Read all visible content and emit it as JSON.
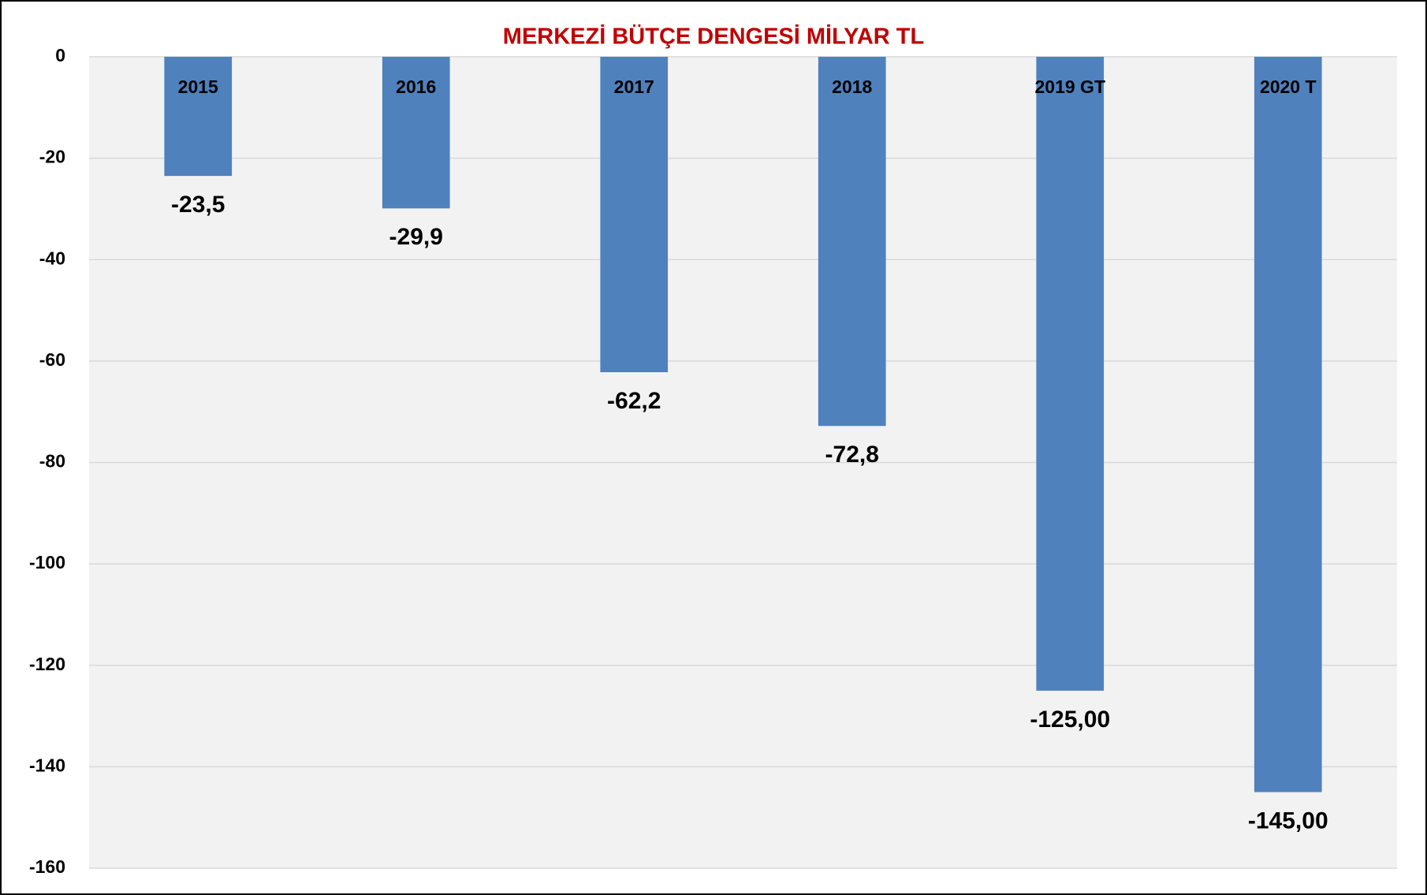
{
  "chart_data": {
    "type": "bar",
    "title": "MERKEZİ BÜTÇE DENGESİ MİLYAR TL",
    "categories": [
      "2015",
      "2016",
      "2017",
      "2018",
      "2019 GT",
      "2020 T"
    ],
    "values": [
      -23.5,
      -29.9,
      -62.2,
      -72.8,
      -125.0,
      -145.0
    ],
    "value_labels": [
      "-23,5",
      "-29,9",
      "-62,2",
      "-72,8",
      "-125,00",
      "-145,00"
    ],
    "color": "#4f81bd",
    "ylim": [
      -160,
      0
    ],
    "yticks": [
      0,
      -20,
      -40,
      -60,
      -80,
      -100,
      -120,
      -140,
      -160
    ],
    "grid": true
  }
}
